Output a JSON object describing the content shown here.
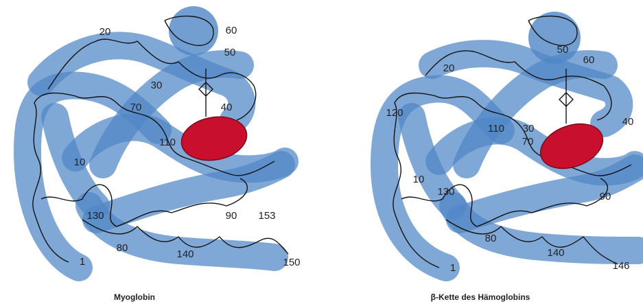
{
  "panels": [
    {
      "caption": "Myoglobin",
      "residue_labels": [
        "20",
        "60",
        "50",
        "30",
        "70",
        "40",
        "110",
        "10",
        "130",
        "80",
        "140",
        "90",
        "153",
        "150",
        "1"
      ]
    },
    {
      "caption": "β-Kette des Hämoglobins",
      "residue_labels": [
        "50",
        "60",
        "20",
        "120",
        "110",
        "30",
        "70",
        "40",
        "10",
        "130",
        "90",
        "80",
        "140",
        "146",
        "1"
      ]
    }
  ]
}
